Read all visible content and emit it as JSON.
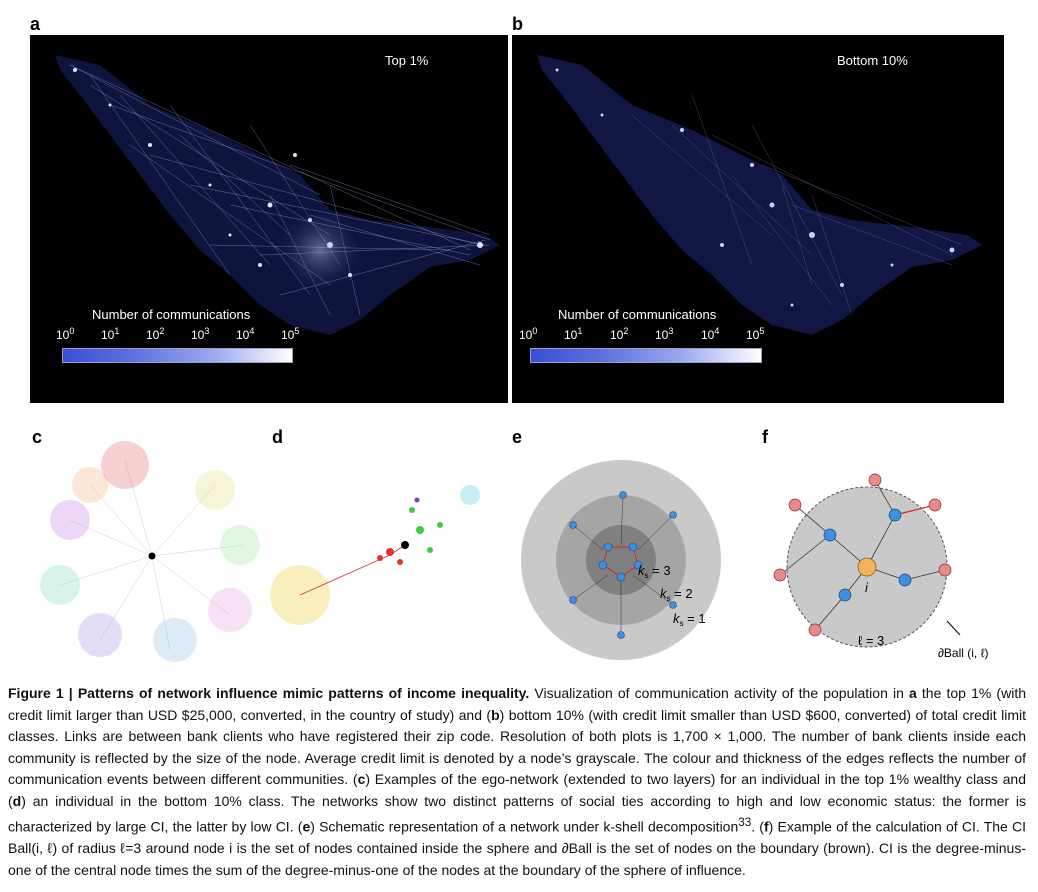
{
  "panels": {
    "a": {
      "letter": "a",
      "label": "Top 1%"
    },
    "b": {
      "letter": "b",
      "label": "Bottom 10%"
    },
    "c": {
      "letter": "c"
    },
    "d": {
      "letter": "d"
    },
    "e": {
      "letter": "e",
      "ks3": "k",
      "ks3_sub": "s",
      "ks3_val": " = 3",
      "ks2": "k",
      "ks2_sub": "s",
      "ks2_val": " = 2",
      "ks1": "k",
      "ks1_sub": "s",
      "ks1_val": " = 1"
    },
    "f": {
      "letter": "f",
      "node_i": "i",
      "ell": "ℓ = 3",
      "ball": "∂Ball (i, ℓ)"
    }
  },
  "colorbar": {
    "title": "Number of communications",
    "base": "10",
    "exponents": [
      "0",
      "1",
      "2",
      "3",
      "4",
      "5"
    ]
  },
  "caption": {
    "head": "Figure 1 | Patterns of network influence mimic patterns of income inequality.",
    "p1": " Visualization of communication activity of the population in ",
    "a": "a",
    "p2": " the top 1% (with credit limit larger than USD $25,000, converted, in the country of study) and (",
    "b": "b",
    "p3": ") bottom 10% (with credit limit smaller than USD $600, converted) of total credit limit classes. Links are between bank clients who have registered their zip code. Resolution of both plots is 1,700 × 1,000. The number of bank clients inside each community is reflected by the size of the node. Average credit limit is denoted by a node’s grayscale. The colour and thickness of the edges reflects the number of communication events between different communities. (",
    "c": "c",
    "p4": ") Examples of the ego-network (extended to two layers) for an individual in the top 1% wealthy class and (",
    "d": "d",
    "p5": ") an individual in the bottom 10% class. The networks show two distinct patterns of social ties according to high and low economic status: the former is characterized by large CI, the latter by low CI. (",
    "e": "e",
    "p6": ") Schematic representation of a network under k-shell decomposition",
    "ref": "33",
    "p7": ". (",
    "f": "f",
    "p8": ") Example of the calculation of CI. The CI Ball(i, ℓ) of radius ℓ=3 around node i is the set of nodes contained inside the sphere and ∂Ball is the set of nodes on the boundary (brown). CI is the degree-minus-one of the central node times the sum of the degree-minus-one of the nodes at the boundary of the sphere of influence."
  },
  "colors": {
    "background_map": "#000000",
    "colorbar_low": "#3a4fd6",
    "colorbar_high": "#ffffff",
    "boundary_node": "#e98a8a",
    "inner_node": "#3d8fe0",
    "center_node": "#f5b25a"
  }
}
